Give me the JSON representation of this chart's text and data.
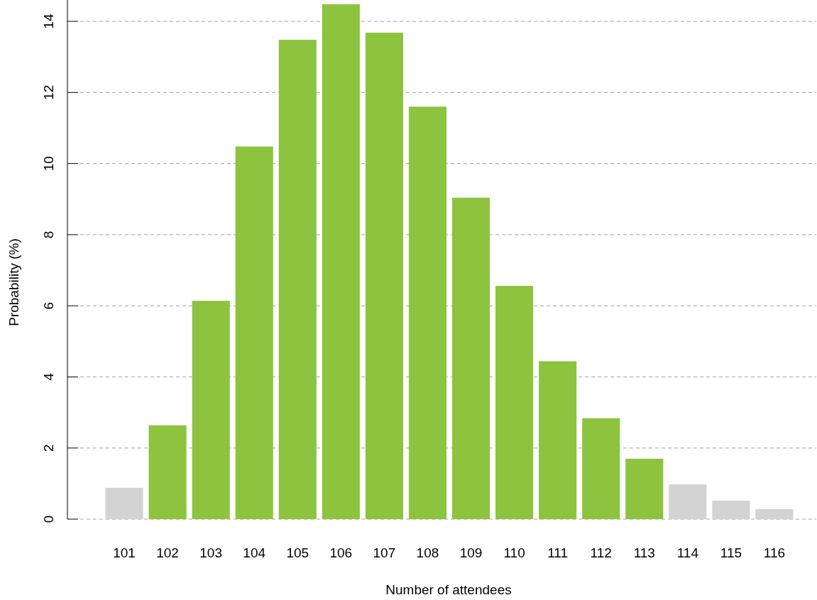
{
  "chart_data": {
    "type": "bar",
    "xlabel": "Number of attendees",
    "ylabel": "Probability (%)",
    "categories": [
      "101",
      "102",
      "103",
      "104",
      "105",
      "106",
      "107",
      "108",
      "109",
      "110",
      "111",
      "112",
      "113",
      "114",
      "115",
      "116"
    ],
    "values": [
      0.88,
      2.64,
      6.14,
      10.48,
      13.48,
      14.48,
      13.68,
      11.6,
      9.04,
      6.56,
      4.44,
      2.84,
      1.7,
      0.98,
      0.52,
      0.28
    ],
    "colors": [
      "#d3d3d3",
      "#8dc33f",
      "#8dc33f",
      "#8dc33f",
      "#8dc33f",
      "#8dc33f",
      "#8dc33f",
      "#8dc33f",
      "#8dc33f",
      "#8dc33f",
      "#8dc33f",
      "#8dc33f",
      "#8dc33f",
      "#d3d3d3",
      "#d3d3d3",
      "#d3d3d3"
    ],
    "ylim": [
      0,
      14.6
    ],
    "yticks": [
      0,
      2,
      4,
      6,
      8,
      10,
      12,
      14
    ],
    "grid": "y"
  }
}
